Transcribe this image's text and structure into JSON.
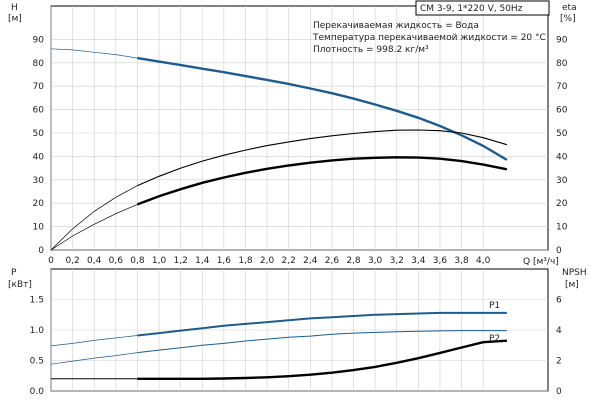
{
  "chart_data": [
    {
      "type": "line",
      "panel": "head-efficiency",
      "info_box": {
        "model": "CM 3-9, 1*220 V, 50Hz",
        "lines": [
          "Перекачиваемая жидкость = Вода",
          "Температура перекачиваемой жидкости = 20 °C",
          "Плотность = 998.2 кг/м³"
        ]
      },
      "left_axis": {
        "label": "H",
        "unit": "[м]",
        "ylim": [
          0,
          100
        ],
        "ticks": [
          0,
          10,
          20,
          30,
          40,
          50,
          60,
          70,
          80,
          90
        ]
      },
      "right_axis": {
        "label": "eta",
        "unit": "[%]",
        "ylim": [
          0,
          100
        ],
        "ticks": [
          0,
          10,
          20,
          30,
          40,
          50,
          60,
          70,
          80,
          90
        ]
      },
      "x_axis": {
        "label": "Q",
        "unit": "[м³/ч]",
        "xlim": [
          0,
          4.4
        ],
        "ticks": [
          0,
          0.2,
          0.4,
          0.6,
          0.8,
          1.0,
          1.2,
          1.4,
          1.6,
          1.8,
          2.0,
          2.2,
          2.4,
          2.6,
          2.8,
          3.0,
          3.2,
          3.4,
          3.6,
          3.8,
          4.0
        ],
        "tick_labels": [
          "0",
          "0,2",
          "0,4",
          "0,6",
          "0,8",
          "1,0",
          "1,2",
          "1,4",
          "1,6",
          "1,8",
          "2,0",
          "2,2",
          "2,4",
          "2,6",
          "2,8",
          "3,0",
          "3,2",
          "3,4",
          "3,6",
          "3,8",
          "4,0"
        ]
      },
      "series": [
        {
          "key": "head",
          "axis": "left",
          "color": "#1f5b8c",
          "x": [
            0,
            0.2,
            0.4,
            0.6,
            0.8,
            1.0,
            1.2,
            1.4,
            1.6,
            1.8,
            2.0,
            2.2,
            2.4,
            2.6,
            2.8,
            3.0,
            3.2,
            3.4,
            3.6,
            3.8,
            4.0,
            4.22
          ],
          "y": [
            86,
            85.5,
            84.5,
            83.5,
            82,
            80.5,
            79,
            77.5,
            76,
            74.3,
            72.7,
            71,
            69,
            67,
            64.7,
            62.2,
            59.5,
            56.5,
            53,
            49,
            44.5,
            38.5
          ]
        },
        {
          "key": "efficiency-outer",
          "axis": "right",
          "color": "#000000",
          "x": [
            0,
            0.2,
            0.4,
            0.6,
            0.8,
            1.0,
            1.2,
            1.4,
            1.6,
            1.8,
            2.0,
            2.2,
            2.4,
            2.6,
            2.8,
            3.0,
            3.2,
            3.4,
            3.6,
            3.8,
            4.0,
            4.22
          ],
          "y": [
            0,
            9,
            16.5,
            22.5,
            27.5,
            31.5,
            35,
            38,
            40.5,
            42.7,
            44.6,
            46.2,
            47.6,
            48.8,
            49.8,
            50.6,
            51.2,
            51.3,
            51,
            50,
            48,
            45
          ]
        },
        {
          "key": "efficiency-inner",
          "axis": "right",
          "color": "#000000",
          "x": [
            0,
            0.2,
            0.4,
            0.6,
            0.8,
            1.0,
            1.2,
            1.4,
            1.6,
            1.8,
            2.0,
            2.2,
            2.4,
            2.6,
            2.8,
            3.0,
            3.2,
            3.4,
            3.6,
            3.8,
            4.0,
            4.22
          ],
          "y": [
            0,
            6,
            11,
            15.5,
            19.5,
            23,
            26,
            28.7,
            31,
            33,
            34.7,
            36.1,
            37.3,
            38.3,
            39,
            39.4,
            39.6,
            39.5,
            39,
            38,
            36.5,
            34.5
          ]
        }
      ]
    },
    {
      "type": "line",
      "panel": "power-npsh",
      "left_axis": {
        "label": "P",
        "unit": "[кВт]",
        "ylim": [
          0,
          2.0
        ],
        "ticks": [
          0,
          0.5,
          1.0,
          1.5
        ],
        "tick_labels": [
          "0.0",
          "0.5",
          "1.0",
          "1.5"
        ]
      },
      "right_axis": {
        "label": "NPSH",
        "unit": "[м]",
        "ylim": [
          0,
          8
        ],
        "ticks": [
          0,
          2,
          4,
          6
        ],
        "tick_labels": [
          "0",
          "2",
          "4",
          "6"
        ]
      },
      "x_axis": {
        "xlim": [
          0,
          4.4
        ]
      },
      "series": [
        {
          "key": "P1",
          "name": "P1",
          "axis": "left",
          "color": "#1f5b8c",
          "x": [
            0,
            0.2,
            0.4,
            0.6,
            0.8,
            1.0,
            1.2,
            1.4,
            1.6,
            1.8,
            2.0,
            2.2,
            2.4,
            2.6,
            2.8,
            3.0,
            3.2,
            3.4,
            3.6,
            3.8,
            4.0,
            4.22
          ],
          "y": [
            0.74,
            0.78,
            0.83,
            0.87,
            0.91,
            0.95,
            0.99,
            1.03,
            1.07,
            1.1,
            1.13,
            1.16,
            1.19,
            1.21,
            1.23,
            1.25,
            1.26,
            1.27,
            1.28,
            1.28,
            1.28,
            1.28
          ]
        },
        {
          "key": "P2",
          "name": "P2",
          "axis": "left",
          "color": "#1f5b8c",
          "x": [
            0,
            0.2,
            0.4,
            0.6,
            0.8,
            1.0,
            1.2,
            1.4,
            1.6,
            1.8,
            2.0,
            2.2,
            2.4,
            2.6,
            2.8,
            3.0,
            3.2,
            3.4,
            3.6,
            3.8,
            4.0,
            4.22
          ],
          "y": [
            0.44,
            0.49,
            0.54,
            0.58,
            0.63,
            0.67,
            0.71,
            0.75,
            0.78,
            0.82,
            0.85,
            0.88,
            0.9,
            0.93,
            0.95,
            0.96,
            0.97,
            0.98,
            0.985,
            0.99,
            0.99,
            0.99
          ]
        },
        {
          "key": "NPSH",
          "axis": "right",
          "color": "#000000",
          "x": [
            0,
            0.2,
            0.4,
            0.6,
            0.8,
            1.0,
            1.2,
            1.4,
            1.6,
            1.8,
            2.0,
            2.2,
            2.4,
            2.6,
            2.8,
            3.0,
            3.2,
            3.4,
            3.6,
            3.8,
            4.0,
            4.22
          ],
          "y": [
            0.8,
            0.8,
            0.8,
            0.8,
            0.8,
            0.8,
            0.8,
            0.8,
            0.82,
            0.85,
            0.9,
            0.97,
            1.07,
            1.2,
            1.37,
            1.58,
            1.85,
            2.15,
            2.5,
            2.85,
            3.2,
            3.3
          ]
        }
      ]
    }
  ]
}
